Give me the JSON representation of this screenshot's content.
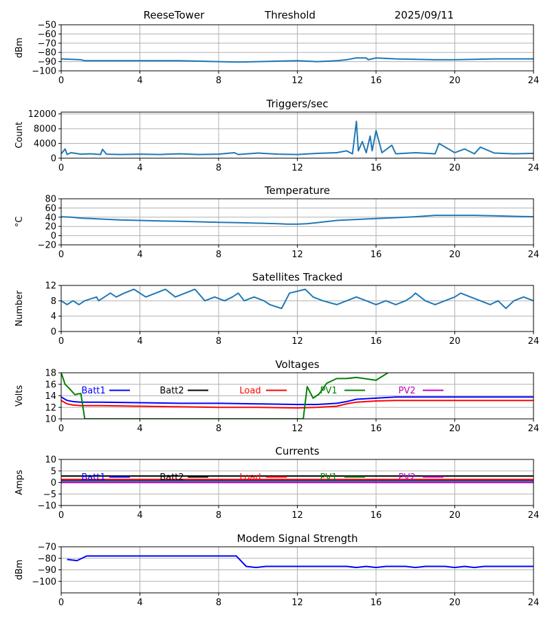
{
  "header": {
    "station": "ReeseTower",
    "dataset": "Threshold",
    "date": "2025/09/11"
  },
  "chart_data": [
    {
      "type": "line",
      "title": "",
      "ylabel": "dBm",
      "xlim": [
        0,
        24
      ],
      "ylim": [
        -100,
        -50
      ],
      "xticks": [
        0,
        4,
        8,
        12,
        16,
        20,
        24
      ],
      "yticks": [
        -50,
        -60,
        -70,
        -80,
        -90,
        -100
      ],
      "grid": true,
      "series": [
        {
          "color": "#1f77b4",
          "x": [
            0,
            1,
            1.2,
            2,
            4,
            5,
            6,
            7,
            8,
            9,
            10,
            11,
            12,
            12.5,
            13,
            14,
            14.5,
            15,
            15.5,
            15.6,
            16,
            17,
            18,
            19,
            20,
            21,
            22,
            23,
            24
          ],
          "y": [
            -87,
            -88,
            -89,
            -89,
            -89,
            -89,
            -89,
            -89.5,
            -90,
            -90.5,
            -90,
            -89.5,
            -89,
            -89.5,
            -90,
            -89,
            -88,
            -86,
            -86,
            -88,
            -86,
            -87,
            -87.5,
            -88,
            -88,
            -87.5,
            -87,
            -87,
            -87
          ]
        }
      ]
    },
    {
      "type": "line",
      "title": "Triggers/sec",
      "ylabel": "Count",
      "xlim": [
        0,
        24
      ],
      "ylim": [
        0,
        12500
      ],
      "xticks": [
        0,
        4,
        8,
        12,
        16,
        20,
        24
      ],
      "yticks": [
        0,
        4000,
        8000,
        12000
      ],
      "grid": true,
      "series": [
        {
          "color": "#1f77b4",
          "x": [
            0,
            0.2,
            0.3,
            0.5,
            1,
            1.5,
            2,
            2.1,
            2.3,
            3,
            4,
            5,
            6,
            7,
            8,
            8.8,
            9,
            10,
            11,
            12,
            13,
            14,
            14.5,
            14.8,
            15,
            15.1,
            15.3,
            15.5,
            15.7,
            15.8,
            16,
            16.3,
            16.8,
            17,
            18,
            19,
            19.2,
            20,
            20.5,
            21,
            21.3,
            22,
            23,
            24
          ],
          "y": [
            1200,
            2500,
            1000,
            1500,
            1100,
            1200,
            1000,
            2400,
            1100,
            1000,
            1100,
            1000,
            1200,
            1000,
            1100,
            1500,
            1000,
            1400,
            1100,
            1000,
            1300,
            1500,
            2000,
            1200,
            10000,
            2000,
            4500,
            1500,
            6000,
            2000,
            7500,
            1500,
            3500,
            1200,
            1500,
            1200,
            4000,
            1500,
            2500,
            1200,
            3000,
            1400,
            1200,
            1300
          ]
        }
      ]
    },
    {
      "type": "line",
      "title": "Temperature",
      "ylabel": "°C",
      "xlim": [
        0,
        24
      ],
      "ylim": [
        -20,
        80
      ],
      "xticks": [
        0,
        4,
        8,
        12,
        16,
        20,
        24
      ],
      "yticks": [
        -20,
        0,
        20,
        40,
        60,
        80
      ],
      "grid": true,
      "series": [
        {
          "color": "#1f77b4",
          "x": [
            0,
            0.5,
            1,
            2,
            3,
            4,
            5,
            6,
            7,
            8,
            9,
            10,
            11,
            11.5,
            12,
            12.5,
            13,
            14,
            15,
            16,
            17,
            18,
            19,
            20,
            21,
            22,
            23,
            24
          ],
          "y": [
            41,
            40,
            38,
            36,
            34,
            33,
            32,
            31,
            30,
            29,
            28,
            27,
            26,
            25,
            25,
            26,
            28,
            33,
            35,
            37,
            39,
            41,
            44,
            44,
            44,
            43,
            42,
            41
          ]
        }
      ]
    },
    {
      "type": "line",
      "title": "Satellites Tracked",
      "ylabel": "Number",
      "xlim": [
        0,
        24
      ],
      "ylim": [
        0,
        12
      ],
      "xticks": [
        0,
        4,
        8,
        12,
        16,
        20,
        24
      ],
      "yticks": [
        0,
        4,
        8,
        12
      ],
      "grid": true,
      "series": [
        {
          "color": "#1f77b4",
          "x": [
            0,
            0.3,
            0.6,
            0.9,
            1.2,
            1.8,
            1.9,
            2.5,
            2.8,
            3.2,
            3.7,
            4.3,
            4.8,
            5.3,
            5.8,
            6.3,
            6.8,
            7.3,
            7.8,
            8.3,
            8.7,
            9,
            9.3,
            9.8,
            10.3,
            10.6,
            11.2,
            11.6,
            12.4,
            12.8,
            13.3,
            14,
            14.5,
            15,
            15.5,
            16,
            16.5,
            17,
            17.5,
            17.8,
            18,
            18.5,
            19,
            19.5,
            20,
            20.3,
            20.8,
            21.3,
            21.8,
            22.2,
            22.6,
            23,
            23.5,
            24
          ],
          "y": [
            8,
            7,
            8,
            7,
            8,
            9,
            8,
            10,
            9,
            10,
            11,
            9,
            10,
            11,
            9,
            10,
            11,
            8,
            9,
            8,
            9,
            10,
            8,
            9,
            8,
            7,
            6,
            10,
            11,
            9,
            8,
            7,
            8,
            9,
            8,
            7,
            8,
            7,
            8,
            9,
            10,
            8,
            7,
            8,
            9,
            10,
            9,
            8,
            7,
            8,
            6,
            8,
            9,
            8
          ]
        }
      ]
    },
    {
      "type": "line",
      "title": "Voltages",
      "ylabel": "Volts",
      "xlim": [
        0,
        24
      ],
      "ylim": [
        10,
        18
      ],
      "xticks": [
        0,
        4,
        8,
        12,
        16,
        20,
        24
      ],
      "yticks": [
        10,
        12,
        14,
        16,
        18
      ],
      "grid": true,
      "legend": "top",
      "series": [
        {
          "name": "Batt1",
          "color": "#0000ff",
          "x": [
            0,
            0.3,
            0.6,
            1,
            2,
            4,
            6,
            8,
            10,
            12,
            13,
            14,
            14.5,
            15,
            16,
            17,
            18,
            20,
            22,
            24
          ],
          "y": [
            13.8,
            13.2,
            13,
            12.9,
            12.9,
            12.8,
            12.7,
            12.7,
            12.6,
            12.5,
            12.5,
            12.7,
            13.0,
            13.4,
            13.6,
            13.8,
            13.8,
            13.8,
            13.8,
            13.8
          ]
        },
        {
          "name": "Batt2",
          "color": "#000000",
          "x": [],
          "y": []
        },
        {
          "name": "Load",
          "color": "#ff0000",
          "x": [
            0,
            0.3,
            0.6,
            1,
            2,
            4,
            6,
            8,
            10,
            12,
            13,
            14,
            14.5,
            15,
            16,
            17,
            18,
            20,
            22,
            24
          ],
          "y": [
            13.2,
            12.6,
            12.4,
            12.3,
            12.3,
            12.2,
            12.1,
            12.0,
            12.0,
            11.9,
            12.0,
            12.2,
            12.6,
            12.9,
            13.1,
            13.2,
            13.2,
            13.2,
            13.2,
            13.2
          ]
        },
        {
          "name": "PV1",
          "color": "#008000",
          "x": [
            0,
            0.2,
            0.4,
            0.7,
            0.8,
            1,
            1.2,
            12.3,
            12.5,
            12.8,
            13.1,
            13.5,
            14,
            14.5,
            15,
            16,
            16.6
          ],
          "y": [
            18,
            16,
            15.3,
            14.2,
            14.3,
            14.4,
            10,
            10,
            15.6,
            13.6,
            14.3,
            16.2,
            17,
            17,
            17.2,
            16.7,
            18
          ]
        },
        {
          "name": "PV2",
          "color": "#bf00bf",
          "x": [],
          "y": []
        }
      ]
    },
    {
      "type": "line",
      "title": "Currents",
      "ylabel": "Amps",
      "xlim": [
        0,
        24
      ],
      "ylim": [
        -10,
        10
      ],
      "xticks": [
        0,
        4,
        8,
        12,
        16,
        20,
        24
      ],
      "yticks": [
        -10,
        -5,
        0,
        5,
        10
      ],
      "grid": true,
      "legend": "top",
      "series": [
        {
          "name": "Batt1",
          "color": "#0000ff",
          "x": [
            0,
            24
          ],
          "y": [
            1,
            1
          ]
        },
        {
          "name": "Batt2",
          "color": "#000000",
          "x": [
            0,
            24
          ],
          "y": [
            2.8,
            2.8
          ]
        },
        {
          "name": "Load",
          "color": "#ff0000",
          "x": [
            0,
            24
          ],
          "y": [
            1.3,
            1.3
          ]
        },
        {
          "name": "PV1",
          "color": "#008000",
          "x": [
            0,
            24
          ],
          "y": [
            0.3,
            0.3
          ]
        },
        {
          "name": "PV2",
          "color": "#bf00bf",
          "x": [
            0,
            24
          ],
          "y": [
            0,
            0
          ]
        }
      ]
    },
    {
      "type": "line",
      "title": "Modem Signal Strength",
      "ylabel": "dBm",
      "xlim": [
        0,
        24
      ],
      "ylim": [
        -110,
        -70
      ],
      "xticks": [
        0,
        4,
        8,
        12,
        16,
        20,
        24
      ],
      "yticks": [
        -70,
        -80,
        -90,
        -100
      ],
      "grid": true,
      "series": [
        {
          "color": "#0000ff",
          "x": [
            0.3,
            0.8,
            1.3,
            2,
            4,
            6,
            8,
            8.9,
            9.4,
            9.9,
            10.4,
            12,
            14,
            14.5,
            15,
            15.5,
            16,
            16.5,
            17,
            17.5,
            18,
            18.5,
            19,
            19.5,
            20,
            20.5,
            21,
            21.5,
            22,
            23,
            24
          ],
          "y": [
            -81,
            -82,
            -78,
            -78,
            -78,
            -78,
            -78,
            -78,
            -87,
            -88,
            -87,
            -87,
            -87,
            -87,
            -88,
            -87,
            -88,
            -87,
            -87,
            -87,
            -88,
            -87,
            -87,
            -87,
            -88,
            -87,
            -88,
            -87,
            -87,
            -87,
            -87
          ]
        }
      ]
    }
  ]
}
